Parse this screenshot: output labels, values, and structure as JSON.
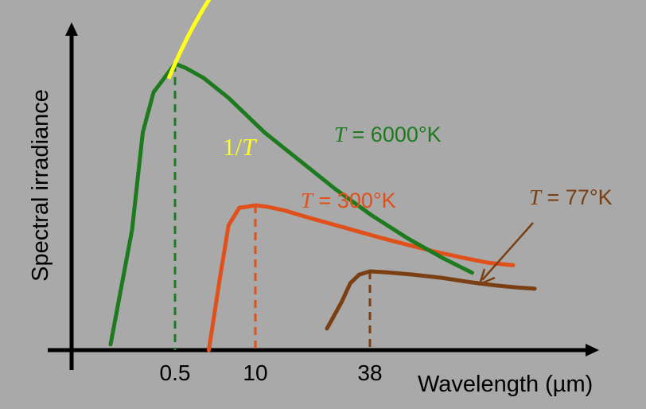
{
  "chart_data": {
    "type": "line",
    "xlabel": "Wavelength (µm)",
    "ylabel": "Spectral irradiance",
    "x_ticks": [
      "0.5",
      "10",
      "38"
    ],
    "series": [
      {
        "name": "T = 6000°K",
        "temp_prefix": "T",
        "temp_value": " = 6000°K",
        "color": "#1e7a1e",
        "peak_tick": "0.5",
        "curve": [
          [
            -1.8,
            0.02
          ],
          [
            -1.2,
            0.42
          ],
          [
            -0.9,
            0.76
          ],
          [
            -0.6,
            0.9
          ],
          [
            -0.3,
            0.95
          ],
          [
            0,
            1.0
          ],
          [
            0.3,
            0.985
          ],
          [
            0.8,
            0.95
          ],
          [
            1.5,
            0.88
          ],
          [
            2.5,
            0.76
          ],
          [
            3.5,
            0.66
          ],
          [
            4.5,
            0.56
          ],
          [
            5.5,
            0.47
          ],
          [
            6.5,
            0.39
          ],
          [
            7.5,
            0.32
          ],
          [
            8.3,
            0.27
          ]
        ]
      },
      {
        "name": "T = 300°K",
        "temp_prefix": "T",
        "temp_value": " = 300°K",
        "color": "#e0501a",
        "peak_tick": "10",
        "curve": [
          [
            -1.3,
            0.0
          ],
          [
            -1.0,
            0.28
          ],
          [
            -0.75,
            0.5
          ],
          [
            -0.45,
            0.57
          ],
          [
            -0.2,
            0.575
          ],
          [
            0,
            0.58
          ],
          [
            0.3,
            0.575
          ],
          [
            0.8,
            0.56
          ],
          [
            1.5,
            0.53
          ],
          [
            2.5,
            0.49
          ],
          [
            3.5,
            0.45
          ],
          [
            4.3,
            0.42
          ],
          [
            5,
            0.395
          ],
          [
            5.8,
            0.37
          ],
          [
            6.5,
            0.35
          ],
          [
            7.2,
            0.34
          ]
        ]
      },
      {
        "name": "T = 77°K",
        "temp_prefix": "T",
        "temp_value": " = 77°K",
        "color": "#7a3f12",
        "peak_tick": "38",
        "curve": [
          [
            -1.2,
            0.1
          ],
          [
            -0.8,
            0.22
          ],
          [
            -0.55,
            0.31
          ],
          [
            -0.3,
            0.35
          ],
          [
            -0.1,
            0.36
          ],
          [
            0,
            0.365
          ],
          [
            0.5,
            0.36
          ],
          [
            1.2,
            0.35
          ],
          [
            2,
            0.335
          ],
          [
            2.8,
            0.315
          ],
          [
            3.5,
            0.3
          ],
          [
            4.1,
            0.29
          ],
          [
            4.6,
            0.285
          ]
        ]
      }
    ],
    "reference_curve": {
      "label_prefix": "1/",
      "label_var": "T",
      "color": "#ffff1a"
    },
    "grid": false
  }
}
